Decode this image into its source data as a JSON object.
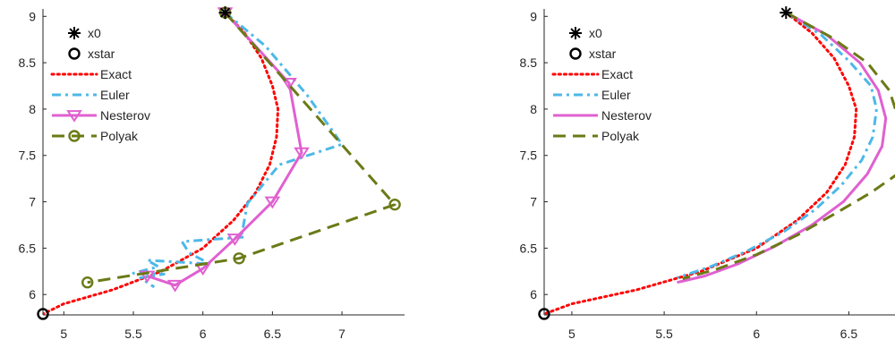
{
  "chart_data": [
    {
      "type": "line",
      "title": "",
      "xlabel": "",
      "ylabel": "",
      "xlim": [
        4.85,
        7.45
      ],
      "ylim": [
        5.78,
        9.08
      ],
      "xticks": [
        5,
        5.5,
        6,
        6.5,
        7
      ],
      "xtick_labels": [
        "5",
        "5.5",
        "6",
        "6.5",
        "7"
      ],
      "yticks": [
        6,
        6.5,
        7,
        7.5,
        8,
        8.5,
        9
      ],
      "ytick_labels": [
        "6",
        "6.5",
        "7",
        "7.5",
        "8",
        "8.5",
        "9"
      ],
      "grid": false,
      "legend_position": "top-left",
      "series": [
        {
          "name": "x0",
          "style": "marker",
          "color": "#000000",
          "marker": "asterisk",
          "points": [
            [
              6.16,
              9.04
            ]
          ]
        },
        {
          "name": "xstar",
          "style": "marker",
          "color": "#000000",
          "marker": "circle",
          "points": [
            [
              4.85,
              5.79
            ]
          ]
        },
        {
          "name": "Exact",
          "style": "dotted",
          "color": "#ff0000",
          "marker": "none",
          "points": [
            [
              6.16,
              9.04
            ],
            [
              6.3,
              8.82
            ],
            [
              6.42,
              8.55
            ],
            [
              6.5,
              8.25
            ],
            [
              6.54,
              8.0
            ],
            [
              6.53,
              7.7
            ],
            [
              6.48,
              7.4
            ],
            [
              6.38,
              7.1
            ],
            [
              6.22,
              6.8
            ],
            [
              6.0,
              6.5
            ],
            [
              5.7,
              6.25
            ],
            [
              5.35,
              6.05
            ],
            [
              5.0,
              5.9
            ],
            [
              4.85,
              5.79
            ]
          ]
        },
        {
          "name": "Euler",
          "style": "dashdot",
          "color": "#4db8e8",
          "marker": "none",
          "points": [
            [
              6.16,
              9.04
            ],
            [
              6.45,
              8.68
            ],
            [
              6.75,
              8.15
            ],
            [
              7.0,
              7.62
            ],
            [
              6.55,
              7.4
            ],
            [
              6.32,
              6.98
            ],
            [
              6.28,
              6.65
            ],
            [
              6.3,
              6.62
            ],
            [
              5.85,
              6.57
            ],
            [
              5.9,
              6.45
            ],
            [
              6.05,
              6.33
            ],
            [
              5.6,
              6.37
            ],
            [
              5.68,
              6.3
            ],
            [
              5.5,
              6.23
            ],
            [
              5.72,
              6.22
            ],
            [
              5.55,
              6.18
            ],
            [
              5.65,
              6.08
            ]
          ]
        },
        {
          "name": "Nesterov",
          "style": "solid",
          "color": "#e060d0",
          "marker": "triangle-down",
          "points": [
            [
              6.16,
              9.04
            ],
            [
              6.62,
              8.28
            ],
            [
              6.71,
              7.53
            ],
            [
              6.5,
              7.0
            ],
            [
              6.23,
              6.6
            ],
            [
              6.0,
              6.28
            ],
            [
              5.8,
              6.1
            ],
            [
              5.6,
              6.2
            ]
          ]
        },
        {
          "name": "Polyak",
          "style": "dashed",
          "color": "#6b7a16",
          "marker": "circle",
          "points": [
            [
              6.16,
              9.04
            ],
            [
              7.38,
              6.97
            ],
            [
              6.26,
              6.39
            ],
            [
              5.17,
              6.13
            ]
          ]
        }
      ]
    },
    {
      "type": "line",
      "title": "",
      "xlabel": "",
      "ylabel": "",
      "xlim": [
        4.85,
        6.75
      ],
      "ylim": [
        5.78,
        9.08
      ],
      "xticks": [
        5,
        5.5,
        6,
        6.5
      ],
      "xtick_labels": [
        "5",
        "5.5",
        "6",
        "6.5"
      ],
      "yticks": [
        6,
        6.5,
        7,
        7.5,
        8,
        8.5,
        9
      ],
      "ytick_labels": [
        "6",
        "6.5",
        "7",
        "7.5",
        "8",
        "8.5",
        "9"
      ],
      "grid": false,
      "legend_position": "top-left",
      "series": [
        {
          "name": "x0",
          "style": "marker",
          "color": "#000000",
          "marker": "asterisk",
          "points": [
            [
              6.16,
              9.04
            ]
          ]
        },
        {
          "name": "xstar",
          "style": "marker",
          "color": "#000000",
          "marker": "circle",
          "points": [
            [
              4.85,
              5.79
            ]
          ]
        },
        {
          "name": "Exact",
          "style": "dotted",
          "color": "#ff0000",
          "marker": "none",
          "points": [
            [
              6.16,
              9.04
            ],
            [
              6.3,
              8.82
            ],
            [
              6.42,
              8.55
            ],
            [
              6.5,
              8.25
            ],
            [
              6.54,
              8.0
            ],
            [
              6.53,
              7.7
            ],
            [
              6.48,
              7.4
            ],
            [
              6.38,
              7.1
            ],
            [
              6.22,
              6.8
            ],
            [
              6.0,
              6.5
            ],
            [
              5.7,
              6.25
            ],
            [
              5.35,
              6.05
            ],
            [
              5.0,
              5.9
            ],
            [
              4.85,
              5.79
            ]
          ]
        },
        {
          "name": "Euler",
          "style": "dashdot",
          "color": "#4db8e8",
          "marker": "none",
          "points": [
            [
              6.16,
              9.04
            ],
            [
              6.35,
              8.8
            ],
            [
              6.5,
              8.52
            ],
            [
              6.62,
              8.25
            ],
            [
              6.65,
              8.0
            ],
            [
              6.63,
              7.7
            ],
            [
              6.57,
              7.45
            ],
            [
              6.46,
              7.18
            ],
            [
              6.32,
              6.92
            ],
            [
              6.15,
              6.68
            ],
            [
              5.95,
              6.47
            ],
            [
              5.75,
              6.3
            ],
            [
              5.57,
              6.18
            ]
          ]
        },
        {
          "name": "Nesterov",
          "style": "solid",
          "color": "#e060d0",
          "marker": "none",
          "points": [
            [
              6.16,
              9.04
            ],
            [
              6.38,
              8.8
            ],
            [
              6.56,
              8.5
            ],
            [
              6.66,
              8.2
            ],
            [
              6.7,
              7.9
            ],
            [
              6.68,
              7.6
            ],
            [
              6.6,
              7.3
            ],
            [
              6.47,
              7.0
            ],
            [
              6.3,
              6.75
            ],
            [
              6.1,
              6.52
            ],
            [
              5.9,
              6.33
            ],
            [
              5.72,
              6.2
            ],
            [
              5.57,
              6.13
            ]
          ]
        },
        {
          "name": "Polyak",
          "style": "dashed",
          "color": "#6b7a16",
          "marker": "none",
          "points": [
            [
              6.16,
              9.04
            ],
            [
              6.4,
              8.78
            ],
            [
              6.6,
              8.5
            ],
            [
              6.72,
              8.2
            ],
            [
              6.76,
              7.95
            ],
            [
              6.8,
              7.6
            ],
            [
              6.8,
              7.35
            ],
            [
              6.62,
              7.1
            ],
            [
              6.45,
              6.9
            ],
            [
              6.22,
              6.64
            ],
            [
              6.0,
              6.43
            ],
            [
              5.78,
              6.27
            ],
            [
              5.6,
              6.17
            ]
          ]
        }
      ]
    }
  ]
}
